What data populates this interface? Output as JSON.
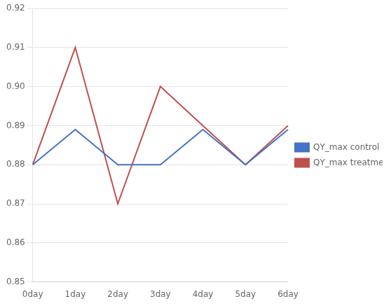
{
  "chart_data": {
    "type": "line",
    "categories": [
      "0day",
      "1day",
      "2day",
      "3day",
      "4day",
      "5day",
      "6day"
    ],
    "series": [
      {
        "name": "QY_max control",
        "color": "#4472C4",
        "values": [
          0.88,
          0.889,
          0.88,
          0.88,
          0.889,
          0.88,
          0.889
        ]
      },
      {
        "name": "QY_max treatment",
        "color": "#C0504D",
        "values": [
          0.88,
          0.91,
          0.87,
          0.9,
          0.89,
          0.88,
          0.89
        ]
      }
    ],
    "ylim": [
      0.85,
      0.92
    ],
    "yticks": [
      0.85,
      0.86,
      0.87,
      0.88,
      0.89,
      {
        "value": 0.9,
        "label": "0.90"
      },
      0.91,
      0.92
    ],
    "grid": "y",
    "legend": "right"
  }
}
